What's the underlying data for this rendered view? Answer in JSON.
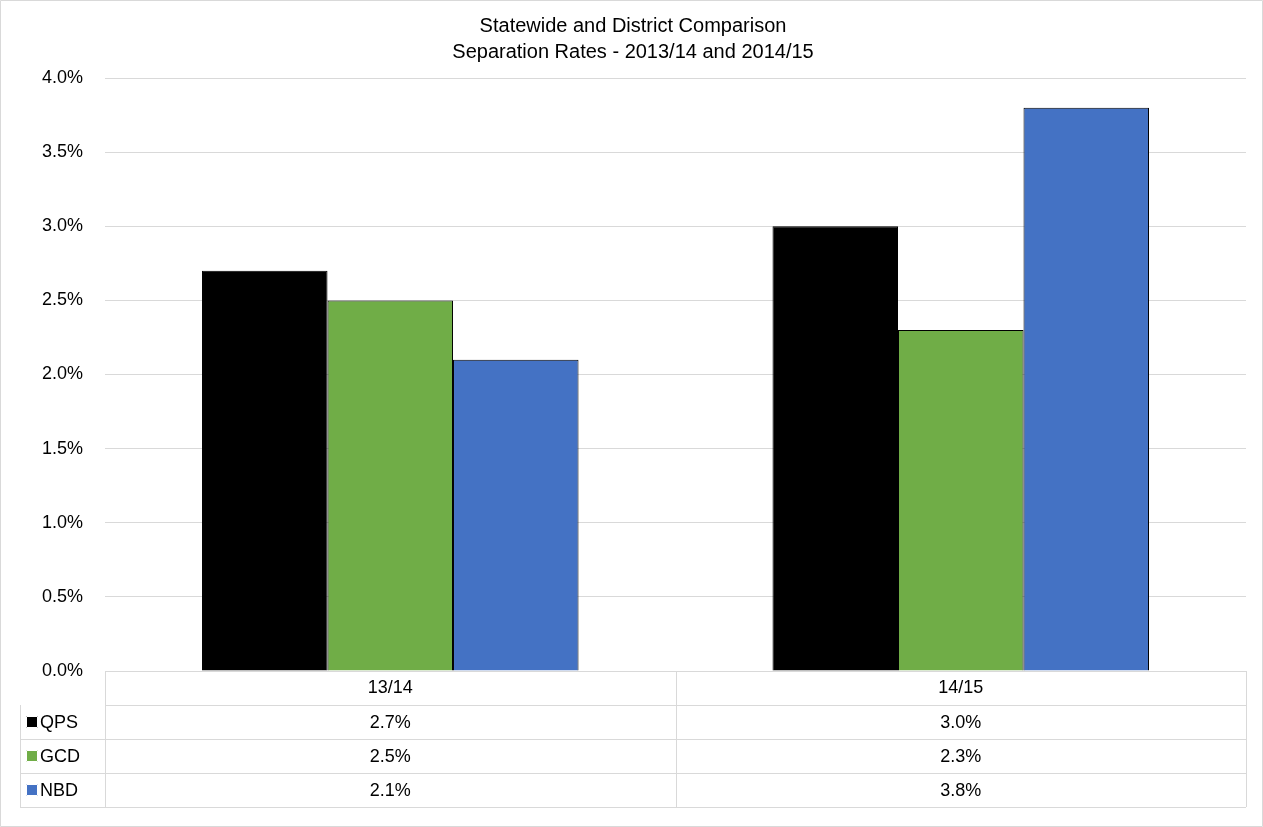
{
  "chart_data": {
    "type": "bar",
    "title": "Statewide and District Comparison",
    "subtitle": "Separation Rates - 2013/14 and 2014/15",
    "categories": [
      "13/14",
      "14/15"
    ],
    "series": [
      {
        "name": "QPS",
        "color": "#000000",
        "values": [
          2.7,
          3.0
        ],
        "value_labels": [
          "2.7%",
          "3.0%"
        ]
      },
      {
        "name": "GCD",
        "color": "#70ad47",
        "values": [
          2.5,
          2.3
        ],
        "value_labels": [
          "2.5%",
          "2.3%"
        ]
      },
      {
        "name": "NBD",
        "color": "#4472c4",
        "values": [
          2.1,
          3.8
        ],
        "value_labels": [
          "2.1%",
          "3.8%"
        ]
      }
    ],
    "ylim": [
      0,
      4
    ],
    "yticks": [
      {
        "value": 0,
        "label": "0.0%"
      },
      {
        "value": 0.5,
        "label": "0.5%"
      },
      {
        "value": 1,
        "label": "1.0%"
      },
      {
        "value": 1.5,
        "label": "1.5%"
      },
      {
        "value": 2,
        "label": "2.0%"
      },
      {
        "value": 2.5,
        "label": "2.5%"
      },
      {
        "value": 3,
        "label": "3.0%"
      },
      {
        "value": 3.5,
        "label": "3.5%"
      },
      {
        "value": 4,
        "label": "4.0%"
      }
    ],
    "grid": "y",
    "legend": "bottom"
  }
}
